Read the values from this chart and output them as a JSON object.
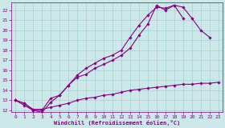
{
  "xlabel": "Windchill (Refroidissement éolien,°C)",
  "bg_color": "#cce8e8",
  "grid_color": "#99cccc",
  "line_color": "#880088",
  "xmin": -0.5,
  "xmax": 23.5,
  "ymin": 11.8,
  "ymax": 22.8,
  "line1_x": [
    0,
    1,
    2,
    3,
    4,
    5,
    6,
    7,
    8,
    9,
    10,
    11,
    12,
    13,
    14,
    15,
    16,
    17,
    18,
    19,
    20,
    21,
    22
  ],
  "line1_y": [
    13.0,
    12.7,
    12.0,
    12.0,
    13.2,
    13.5,
    14.5,
    15.3,
    15.6,
    16.2,
    16.6,
    17.0,
    17.5,
    18.2,
    19.5,
    20.6,
    22.5,
    22.0,
    22.5,
    22.3,
    21.2,
    20.0,
    19.3
  ],
  "line2_x": [
    0,
    1,
    2,
    3,
    4,
    5,
    6,
    7,
    8,
    9,
    10,
    11,
    12,
    13,
    14,
    15,
    16,
    17,
    18,
    19
  ],
  "line2_y": [
    13.0,
    12.5,
    12.0,
    11.8,
    12.8,
    13.5,
    14.5,
    15.5,
    16.2,
    16.7,
    17.2,
    17.5,
    18.0,
    19.3,
    20.5,
    21.5,
    22.3,
    22.2,
    22.5,
    21.2
  ],
  "line3_x": [
    0,
    1,
    2,
    3,
    4,
    5,
    6,
    7,
    8,
    9,
    10,
    11,
    12,
    13,
    14,
    15,
    16,
    17,
    18,
    19,
    20,
    21,
    22,
    23
  ],
  "line3_y": [
    13.0,
    12.7,
    12.1,
    12.1,
    12.3,
    12.5,
    12.7,
    13.0,
    13.2,
    13.3,
    13.5,
    13.6,
    13.8,
    14.0,
    14.1,
    14.2,
    14.3,
    14.4,
    14.5,
    14.6,
    14.6,
    14.7,
    14.7,
    14.8
  ],
  "yticks": [
    12,
    13,
    14,
    15,
    16,
    17,
    18,
    19,
    20,
    21,
    22
  ],
  "xticks": [
    0,
    1,
    2,
    3,
    4,
    5,
    6,
    7,
    8,
    9,
    10,
    11,
    12,
    13,
    14,
    15,
    16,
    17,
    18,
    19,
    20,
    21,
    22,
    23
  ],
  "marker": "D",
  "markersize": 1.8,
  "linewidth": 0.8
}
